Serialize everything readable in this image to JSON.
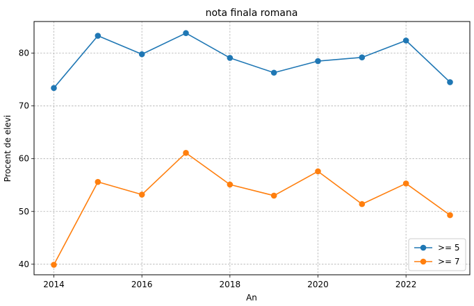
{
  "chart_data": {
    "type": "line",
    "title": "nota finala romana",
    "xlabel": "An",
    "ylabel": "Procent de elevi",
    "x": [
      2014,
      2015,
      2016,
      2017,
      2018,
      2019,
      2020,
      2021,
      2022,
      2023
    ],
    "xticks": [
      2014,
      2016,
      2018,
      2020,
      2022
    ],
    "yticks": [
      40,
      50,
      60,
      70,
      80
    ],
    "xlim": [
      2013.55,
      2023.45
    ],
    "ylim": [
      38.0,
      86.0
    ],
    "grid": true,
    "legend_position": "lower-right",
    "series": [
      {
        "name": ">= 5",
        "color": "#1f77b4",
        "values": [
          73.4,
          83.3,
          79.8,
          83.8,
          79.1,
          76.3,
          78.5,
          79.2,
          82.4,
          74.5
        ]
      },
      {
        "name": ">= 7",
        "color": "#ff7f0e",
        "values": [
          39.9,
          55.6,
          53.2,
          61.1,
          55.1,
          53.0,
          57.6,
          51.4,
          55.3,
          49.3
        ]
      }
    ]
  }
}
